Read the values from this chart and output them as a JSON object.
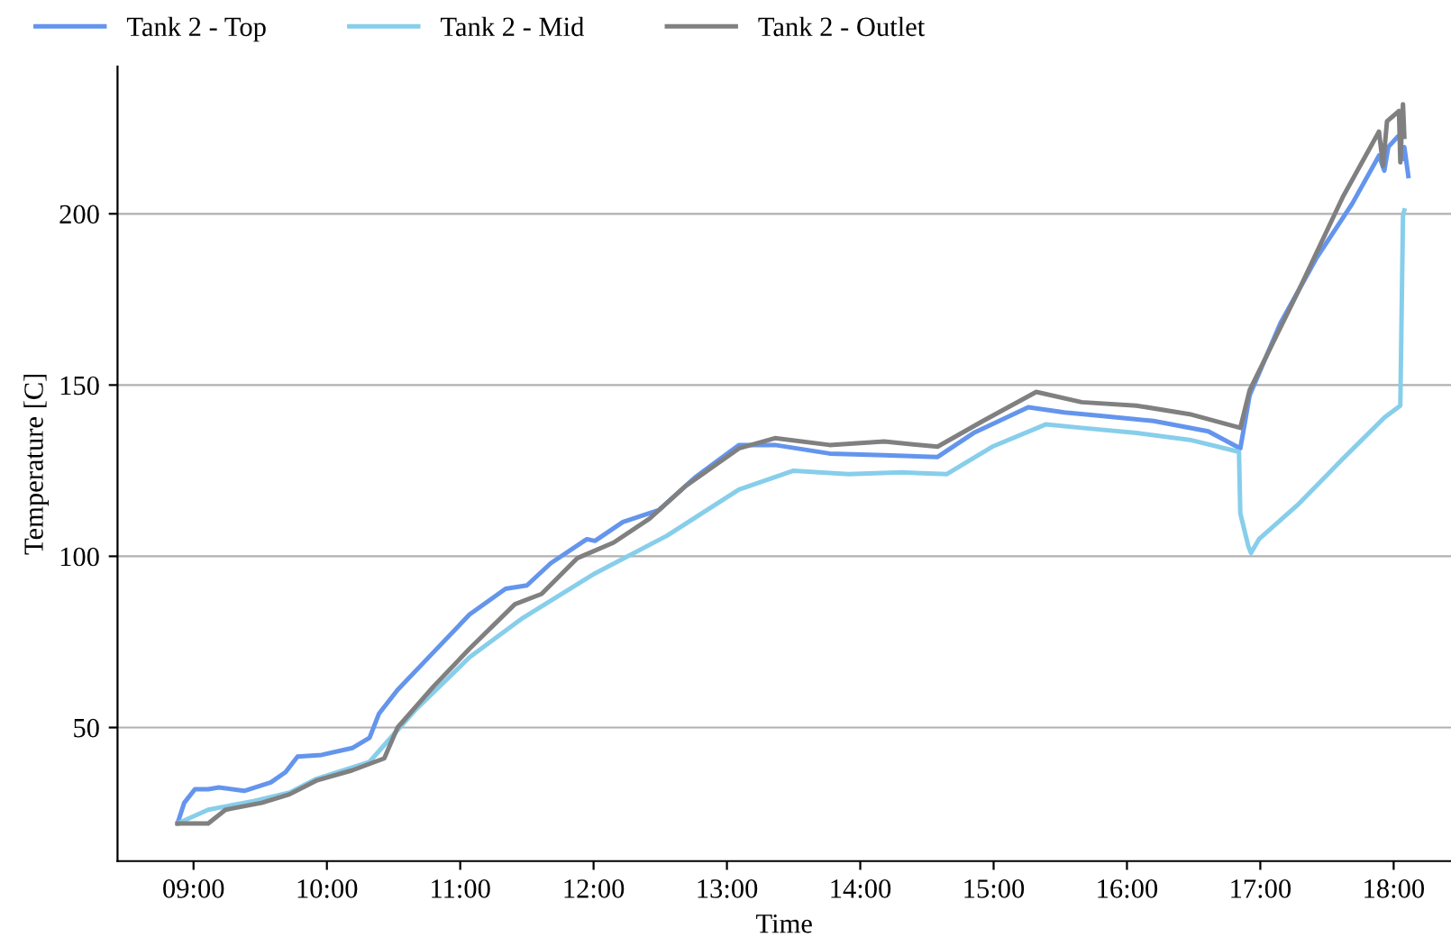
{
  "chart_data": {
    "type": "line",
    "xlabel": "Time",
    "ylabel": "Temperature [C]",
    "xlim": [
      8.43,
      18.43
    ],
    "ylim": [
      11,
      243
    ],
    "xticks": [
      {
        "value": 9,
        "label": "09:00"
      },
      {
        "value": 10,
        "label": "10:00"
      },
      {
        "value": 11,
        "label": "11:00"
      },
      {
        "value": 12,
        "label": "12:00"
      },
      {
        "value": 13,
        "label": "13:00"
      },
      {
        "value": 14,
        "label": "14:00"
      },
      {
        "value": 15,
        "label": "15:00"
      },
      {
        "value": 16,
        "label": "16:00"
      },
      {
        "value": 17,
        "label": "17:00"
      },
      {
        "value": 18,
        "label": "18:00"
      }
    ],
    "yticks": [
      50,
      100,
      150,
      200
    ],
    "grid": "y",
    "legend": "top",
    "line_style": "solid",
    "marker": "none",
    "series": [
      {
        "name": "Tank 2 - Top",
        "color": "#6495ed",
        "x": [
          8.88,
          8.93,
          9.01,
          9.11,
          9.19,
          9.38,
          9.58,
          9.69,
          9.78,
          9.96,
          10.19,
          10.32,
          10.39,
          10.53,
          10.8,
          11.07,
          11.34,
          11.5,
          11.68,
          11.95,
          12.01,
          12.22,
          12.49,
          12.76,
          13.09,
          13.36,
          13.77,
          14.18,
          14.58,
          14.85,
          15.26,
          15.53,
          15.8,
          16.2,
          16.61,
          16.85,
          16.92,
          17.15,
          17.42,
          17.69,
          17.89,
          17.93,
          17.96,
          18.03,
          18.05,
          18.07,
          18.08,
          18.11
        ],
        "values": [
          22,
          28,
          32,
          32,
          32.5,
          31.5,
          34,
          37,
          41.5,
          42,
          44,
          47,
          54,
          61,
          72,
          83,
          90.5,
          91.5,
          98,
          105,
          104.5,
          110,
          113.5,
          123,
          132.5,
          132.5,
          130,
          129.5,
          129,
          136,
          143.5,
          142,
          141,
          139.5,
          136.5,
          131.5,
          147,
          168,
          187,
          203,
          217,
          212.6,
          219.5,
          222.5,
          221.5,
          216,
          219.5,
          211
        ]
      },
      {
        "name": "Tank 2 - Mid",
        "color": "#87ceeb",
        "x": [
          8.88,
          9.11,
          9.45,
          9.72,
          9.92,
          10.32,
          10.66,
          11.07,
          11.47,
          12.01,
          12.55,
          13.09,
          13.5,
          13.91,
          14.31,
          14.65,
          14.99,
          15.39,
          15.66,
          16.07,
          16.47,
          16.84,
          16.85,
          16.91,
          16.93,
          16.99,
          17.28,
          17.62,
          17.93,
          18.05,
          18.07,
          18.08
        ],
        "values": [
          22,
          26,
          28.5,
          31,
          35,
          40,
          55,
          70.5,
          82,
          95,
          106,
          119.5,
          125,
          124,
          124.5,
          124,
          132,
          138.5,
          137.5,
          136,
          134,
          130.5,
          112.5,
          103,
          101,
          105,
          115,
          128.5,
          140.5,
          144,
          199.5,
          201
        ]
      },
      {
        "name": "Tank 2 - Outlet",
        "color": "#808080",
        "x": [
          8.88,
          9.11,
          9.24,
          9.51,
          9.72,
          9.92,
          10.19,
          10.43,
          10.53,
          10.8,
          11.07,
          11.41,
          11.61,
          11.88,
          12.15,
          12.42,
          12.69,
          13.09,
          13.36,
          13.77,
          14.18,
          14.58,
          14.92,
          15.32,
          15.66,
          16.07,
          16.47,
          16.85,
          16.92,
          17.28,
          17.62,
          17.89,
          17.92,
          17.95,
          18.04,
          18.05,
          18.07,
          18.08
        ],
        "values": [
          22,
          22,
          26,
          28,
          30.5,
          34.5,
          37.5,
          41,
          50,
          62,
          73,
          86,
          89,
          99.5,
          104,
          111,
          120.5,
          131.5,
          134.5,
          132.5,
          133.5,
          132,
          139.5,
          148,
          145,
          144,
          141.5,
          137.5,
          148.5,
          177,
          205,
          224,
          214,
          227,
          230,
          215,
          232,
          222.5
        ]
      }
    ]
  }
}
